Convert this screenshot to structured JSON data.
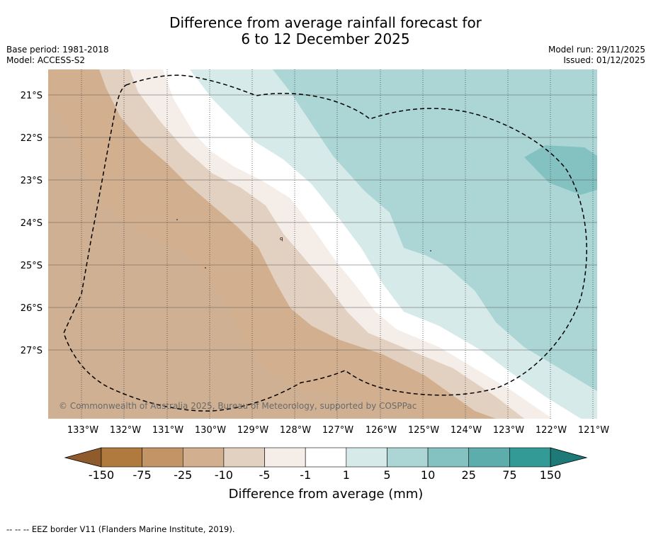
{
  "title": {
    "line1": "Difference from average rainfall forecast for",
    "line2": "6 to 12 December 2025"
  },
  "info_left": {
    "base_period": "Base period: 1981-2018",
    "model": "Model: ACCESS-S2"
  },
  "info_right": {
    "model_run": "Model run: 29/11/2025",
    "issued": "Issued: 01/12/2025"
  },
  "copyright": "© Commonwealth of Australia 2025, Bureau of Meteorology, supported by COSPPac",
  "map": {
    "lon_labels": [
      "133°W",
      "132°W",
      "131°W",
      "130°W",
      "129°W",
      "128°W",
      "127°W",
      "126°W",
      "125°W",
      "124°W",
      "123°W",
      "122°W",
      "121°W"
    ],
    "lat_labels": [
      "21°S",
      "22°S",
      "23°S",
      "24°S",
      "25°S",
      "26°S",
      "27°S"
    ]
  },
  "colorbar": {
    "tick_labels": [
      "-150",
      "-75",
      "-25",
      "-10",
      "-5",
      "-1",
      "1",
      "5",
      "10",
      "25",
      "75",
      "150"
    ],
    "colors": [
      "#b07a3f",
      "#c39566",
      "#d2b08f",
      "#e2d0c0",
      "#f4ede8",
      "#ffffff",
      "#d6eaea",
      "#acd6d6",
      "#84c2c2",
      "#5eadad",
      "#339a96"
    ],
    "extend_low_color": "#8f5a2c",
    "extend_high_color": "#1d7a77",
    "label": "Difference from average (mm)"
  },
  "footnote": "--  --  -- EEZ border V11 (Flanders Marine Institute, 2019)."
}
